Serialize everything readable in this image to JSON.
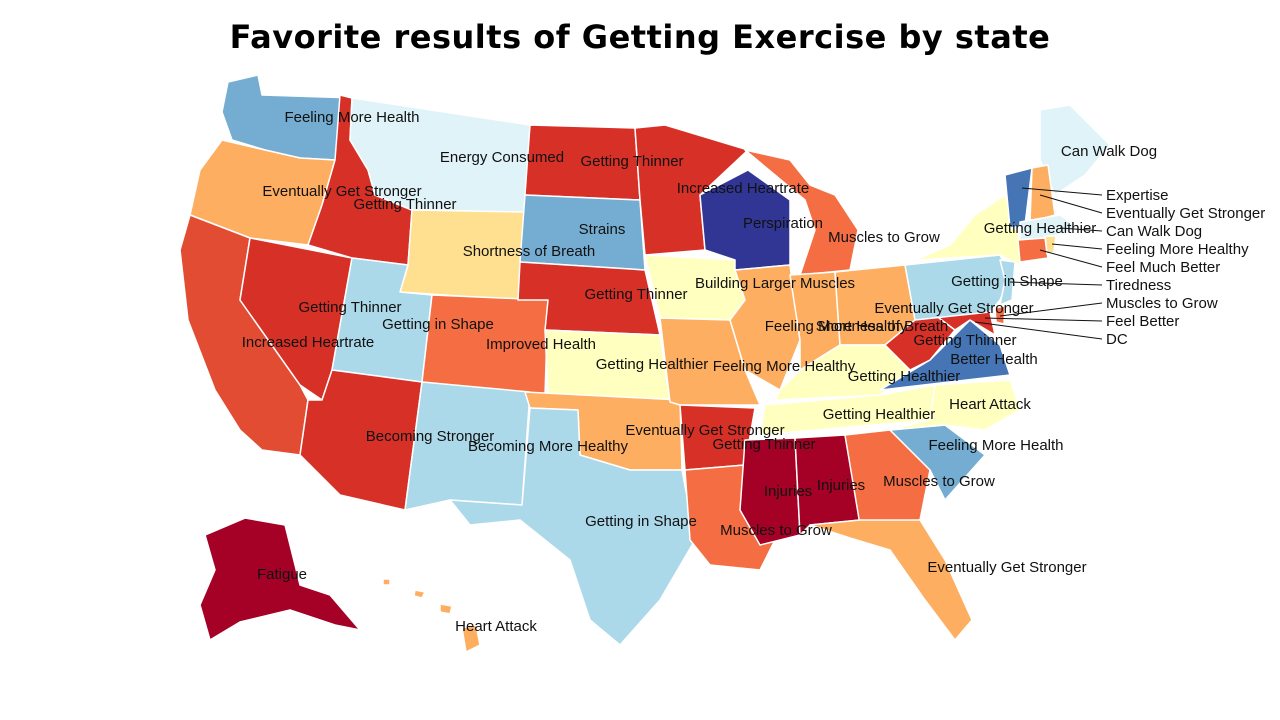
{
  "title": "Favorite results of Getting Exercise by state",
  "colors": {
    "darkred": "#a50026",
    "red": "#d73027",
    "redorange": "#e24c33",
    "orange": "#f46d43",
    "lightorange": "#fdae61",
    "pale": "#fee090",
    "cream": "#ffffbf",
    "paleblue": "#e0f3f8",
    "lightblue": "#abd9e9",
    "skyblue": "#74add1",
    "blue": "#4575b4",
    "navy": "#313695"
  },
  "states": [
    {
      "id": "WA",
      "result": "Feeling More Health"
    },
    {
      "id": "OR",
      "result": "Eventually Get Stronger"
    },
    {
      "id": "CA",
      "result": "Increased Heartrate"
    },
    {
      "id": "ID",
      "result": "Getting Thinner"
    },
    {
      "id": "NV",
      "result": "Getting Thinner"
    },
    {
      "id": "MT",
      "result": "Energy Consumed"
    },
    {
      "id": "WY",
      "result": "Shortness of Breath"
    },
    {
      "id": "UT",
      "result": "Getting in Shape"
    },
    {
      "id": "AZ",
      "result": "Becoming Stronger"
    },
    {
      "id": "CO",
      "result": "Improved Health"
    },
    {
      "id": "NM",
      "result": "Becoming More Healthy"
    },
    {
      "id": "ND",
      "result": "Getting Thinner"
    },
    {
      "id": "SD",
      "result": "Strains"
    },
    {
      "id": "NE",
      "result": "Getting Thinner"
    },
    {
      "id": "KS",
      "result": "Getting Healthier"
    },
    {
      "id": "OK",
      "result": "Eventually Get Stronger"
    },
    {
      "id": "TX",
      "result": "Getting in Shape"
    },
    {
      "id": "MN",
      "result": "Increased Heartrate"
    },
    {
      "id": "IA",
      "result": "Building Larger Muscles"
    },
    {
      "id": "MO",
      "result": "Feeling More Healthy"
    },
    {
      "id": "AR",
      "result": "Getting Thinner"
    },
    {
      "id": "LA",
      "result": "Muscles to Grow"
    },
    {
      "id": "WI",
      "result": "Perspiration"
    },
    {
      "id": "IL",
      "result": "Feeling More Healthy"
    },
    {
      "id": "MI",
      "result": "Muscles to Grow"
    },
    {
      "id": "IN",
      "result": "Shortness of Breath"
    },
    {
      "id": "OH",
      "result": "Eventually Get Stronger"
    },
    {
      "id": "KY",
      "result": "Getting Healthier"
    },
    {
      "id": "TN",
      "result": "Getting Healthier"
    },
    {
      "id": "MS",
      "result": "Injuries"
    },
    {
      "id": "AL",
      "result": "Injuries"
    },
    {
      "id": "GA",
      "result": "Muscles to Grow"
    },
    {
      "id": "FL",
      "result": "Eventually Get Stronger"
    },
    {
      "id": "SC",
      "result": "Feeling More Health"
    },
    {
      "id": "NC",
      "result": "Heart Attack"
    },
    {
      "id": "VA",
      "result": "Better Health"
    },
    {
      "id": "WV",
      "result": "Getting Thinner"
    },
    {
      "id": "PA",
      "result": "Getting in Shape"
    },
    {
      "id": "NY",
      "result": "Getting Healthier"
    },
    {
      "id": "ME",
      "result": "Can Walk Dog"
    },
    {
      "id": "VT",
      "result": "Expertise"
    },
    {
      "id": "NH",
      "result": "Eventually Get Stronger"
    },
    {
      "id": "MA",
      "result": "Can Walk Dog"
    },
    {
      "id": "RI",
      "result": "Feeling More Healthy"
    },
    {
      "id": "CT",
      "result": "Feel Much Better"
    },
    {
      "id": "NJ",
      "result": "Tiredness"
    },
    {
      "id": "DE",
      "result": "Muscles to Grow"
    },
    {
      "id": "MD",
      "result": "Feel Better"
    },
    {
      "id": "DC",
      "result": "DC"
    },
    {
      "id": "AK",
      "result": "Fatigue"
    },
    {
      "id": "HI",
      "result": "Heart Attack"
    }
  ]
}
